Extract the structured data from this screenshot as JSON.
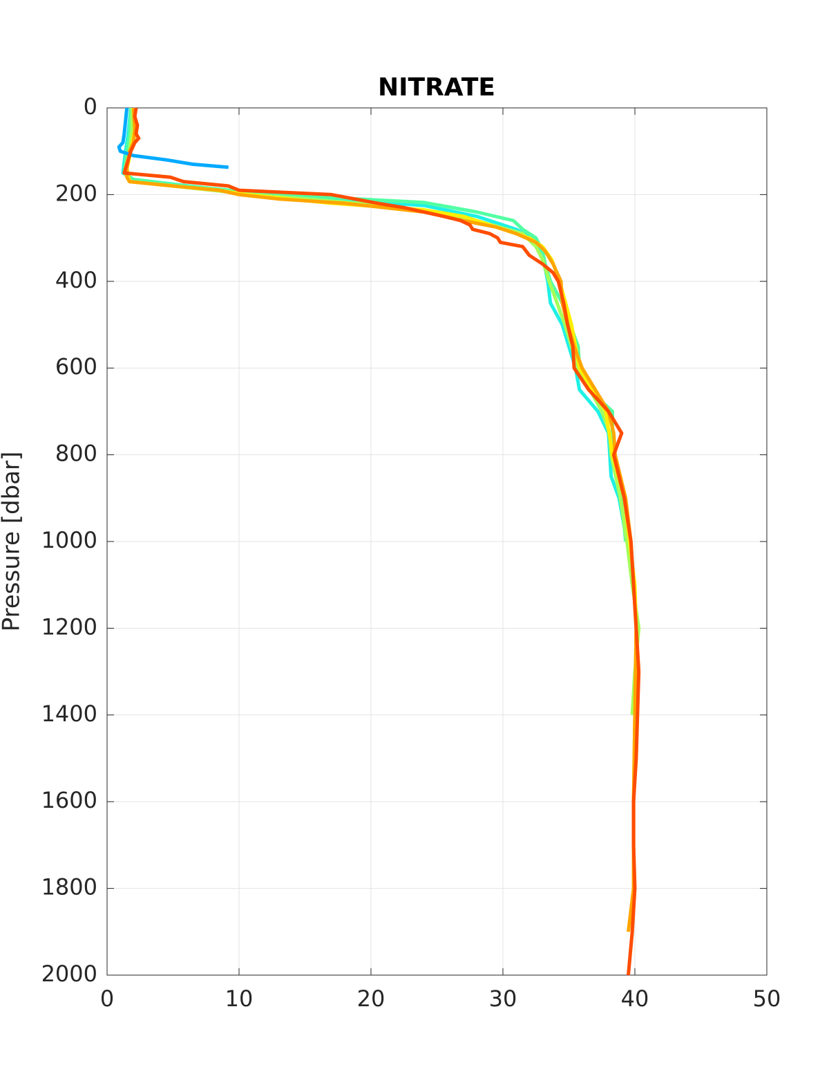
{
  "chart_data": {
    "type": "line",
    "title": "NITRATE",
    "ylabel": "Pressure [dbar]",
    "xlim": [
      0,
      50
    ],
    "xticks": [
      0,
      10,
      20,
      30,
      40,
      50
    ],
    "ylim": [
      0,
      2000
    ],
    "yticks": [
      0,
      200,
      400,
      600,
      800,
      1000,
      1200,
      1400,
      1600,
      1800,
      2000
    ],
    "y_reversed": true,
    "grid": true,
    "series": [
      {
        "color": "#1ff0e5",
        "x": [
          1.8,
          1.6,
          1.4,
          1.2,
          2,
          9,
          17,
          24,
          28,
          31,
          32.2,
          33,
          33.4,
          33.6,
          34.5,
          35.5,
          35.8,
          37.2,
          38,
          38.2,
          38.8,
          39.4
        ],
        "values": [
          0,
          60,
          100,
          150,
          165,
          190,
          210,
          225,
          250,
          280,
          300,
          340,
          400,
          450,
          500,
          600,
          650,
          700,
          750,
          850,
          900,
          1000
        ]
      },
      {
        "color": "#52ffa3",
        "x": [
          1.8,
          1.7,
          1.5,
          1.3,
          2,
          6,
          11,
          19,
          24,
          28,
          30.8,
          31.5,
          32.5,
          33,
          33.2,
          33.6,
          34.5,
          35.7,
          35.8,
          36.5,
          38.3,
          38.3,
          39,
          39.3
        ],
        "values": [
          0,
          60,
          100,
          150,
          165,
          180,
          195,
          210,
          218,
          240,
          260,
          280,
          300,
          330,
          360,
          400,
          450,
          550,
          600,
          650,
          700,
          800,
          900,
          1000
        ]
      },
      {
        "color": "#a5ff5a",
        "x": [
          1.9,
          1.9,
          1.7,
          1.3,
          1.8,
          8,
          11,
          19,
          25,
          28,
          31.5,
          32.5,
          33,
          33.5,
          34.7,
          35.7,
          37.5,
          38.1,
          38.2,
          38.9,
          39.4,
          39.8,
          40.3,
          40,
          39.8
        ],
        "values": [
          0,
          50,
          100,
          150,
          170,
          190,
          200,
          220,
          240,
          260,
          290,
          320,
          350,
          400,
          500,
          600,
          700,
          750,
          800,
          900,
          1000,
          1100,
          1200,
          1300,
          1400
        ]
      },
      {
        "color": "#ffee00",
        "x": [
          2.1,
          2.1,
          1.8,
          1.5,
          1.7,
          5,
          8.5,
          10.5,
          17,
          24,
          27,
          30,
          32,
          33,
          33.7,
          34.3,
          35.2,
          35.8,
          37.8,
          38.3,
          39.2,
          39.6,
          40,
          40.1,
          40,
          39.9,
          39.9
        ],
        "values": [
          0,
          50,
          100,
          140,
          170,
          180,
          190,
          200,
          220,
          235,
          250,
          280,
          300,
          320,
          350,
          400,
          500,
          600,
          700,
          800,
          900,
          1000,
          1100,
          1200,
          1400,
          1600,
          1700
        ]
      },
      {
        "color": "#ffa500",
        "x": [
          2,
          2.1,
          2,
          1.7,
          1.5,
          1.5,
          1.7,
          5,
          8.5,
          10,
          13,
          18,
          24,
          27,
          29.5,
          31,
          32.5,
          33.2,
          33.8,
          34.4,
          34.5,
          34.9,
          35.4,
          36,
          37,
          38,
          38.4,
          38.5,
          39.3,
          39.7,
          40.1,
          40,
          39.9,
          39.9,
          39.5
        ],
        "values": [
          0,
          50,
          80,
          100,
          140,
          160,
          170,
          180,
          190,
          200,
          210,
          220,
          240,
          260,
          275,
          290,
          310,
          330,
          360,
          400,
          450,
          500,
          550,
          600,
          650,
          700,
          750,
          800,
          900,
          1000,
          1200,
          1400,
          1600,
          1800,
          1900
        ]
      },
      {
        "color": "#00aaff",
        "x": [
          1.5,
          1.4,
          1.3,
          1.2,
          0.9,
          1,
          2,
          4.5,
          6.5,
          9.2
        ],
        "values": [
          0,
          30,
          60,
          80,
          90,
          100,
          110,
          120,
          130,
          137
        ]
      },
      {
        "color": "#ff4d00",
        "x": [
          2.2,
          2.1,
          2.3,
          2.2,
          2.4,
          2.1,
          1.8,
          1.6,
          1.4,
          1.3,
          4.8,
          5.8,
          9.2,
          10,
          17,
          20.5,
          22.5,
          25.5,
          26.8,
          27.5,
          27.7,
          29,
          29.6,
          29.8,
          31.5,
          32,
          33,
          33.8,
          34.2,
          34.6,
          34.9,
          35.3,
          35.4,
          36.5,
          38,
          39,
          38.4,
          39.2,
          39.7,
          39.9,
          40.1,
          40.3,
          40.2,
          40.1,
          39.9,
          39.9,
          40,
          39.8,
          39.5
        ],
        "values": [
          0,
          20,
          40,
          60,
          70,
          80,
          100,
          120,
          140,
          150,
          160,
          170,
          180,
          190,
          200,
          220,
          230,
          250,
          260,
          270,
          280,
          290,
          300,
          310,
          320,
          340,
          360,
          380,
          400,
          450,
          500,
          550,
          600,
          650,
          700,
          750,
          800,
          900,
          1000,
          1100,
          1200,
          1300,
          1400,
          1500,
          1600,
          1700,
          1800,
          1900,
          2000
        ]
      }
    ]
  }
}
